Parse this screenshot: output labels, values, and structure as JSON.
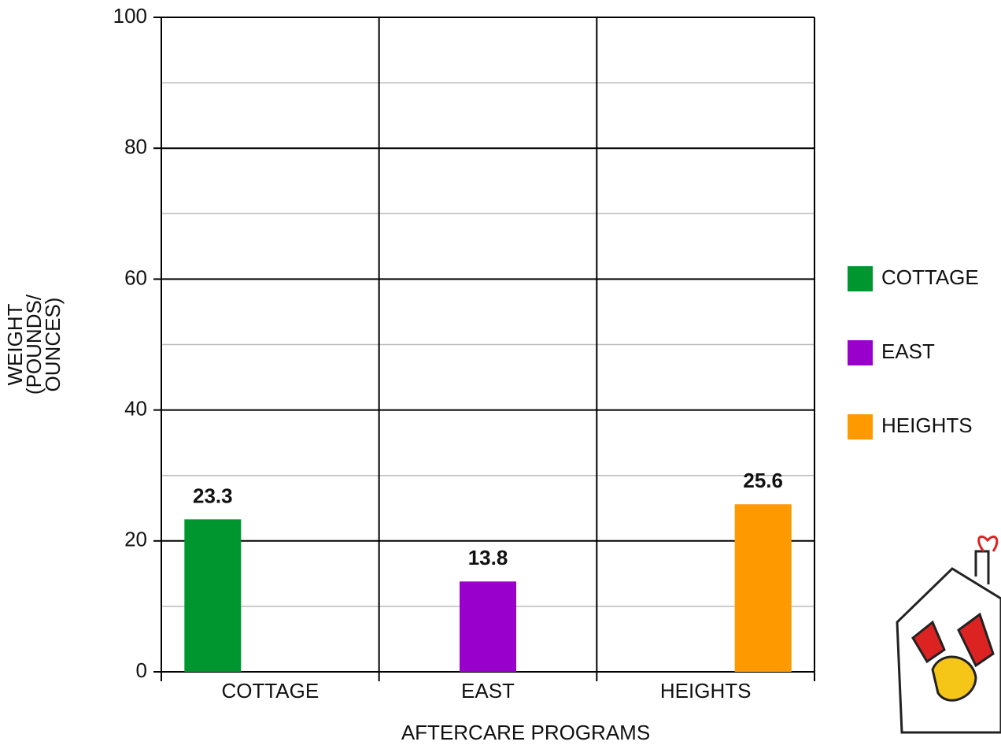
{
  "chart_data": {
    "type": "bar",
    "xlabel": "AFTERCARE PROGRAMS",
    "ylabel": [
      "WEIGHT",
      "(POUNDS/",
      "OUNCES)"
    ],
    "categories": [
      "COTTAGE",
      "EAST",
      "HEIGHTS"
    ],
    "series": [
      {
        "name": "COTTAGE",
        "color": "#00962f",
        "values": [
          23.3,
          null,
          null
        ]
      },
      {
        "name": "EAST",
        "color": "#9900cc",
        "values": [
          null,
          13.8,
          null
        ]
      },
      {
        "name": "HEIGHTS",
        "color": "#ff9900",
        "values": [
          null,
          null,
          25.6
        ]
      }
    ],
    "ylim": [
      0,
      100
    ],
    "yticks": [
      0,
      20,
      40,
      60,
      80,
      100
    ],
    "minor_yticks": [
      10,
      30,
      50,
      70,
      90
    ],
    "grid": true,
    "legend": "right"
  }
}
